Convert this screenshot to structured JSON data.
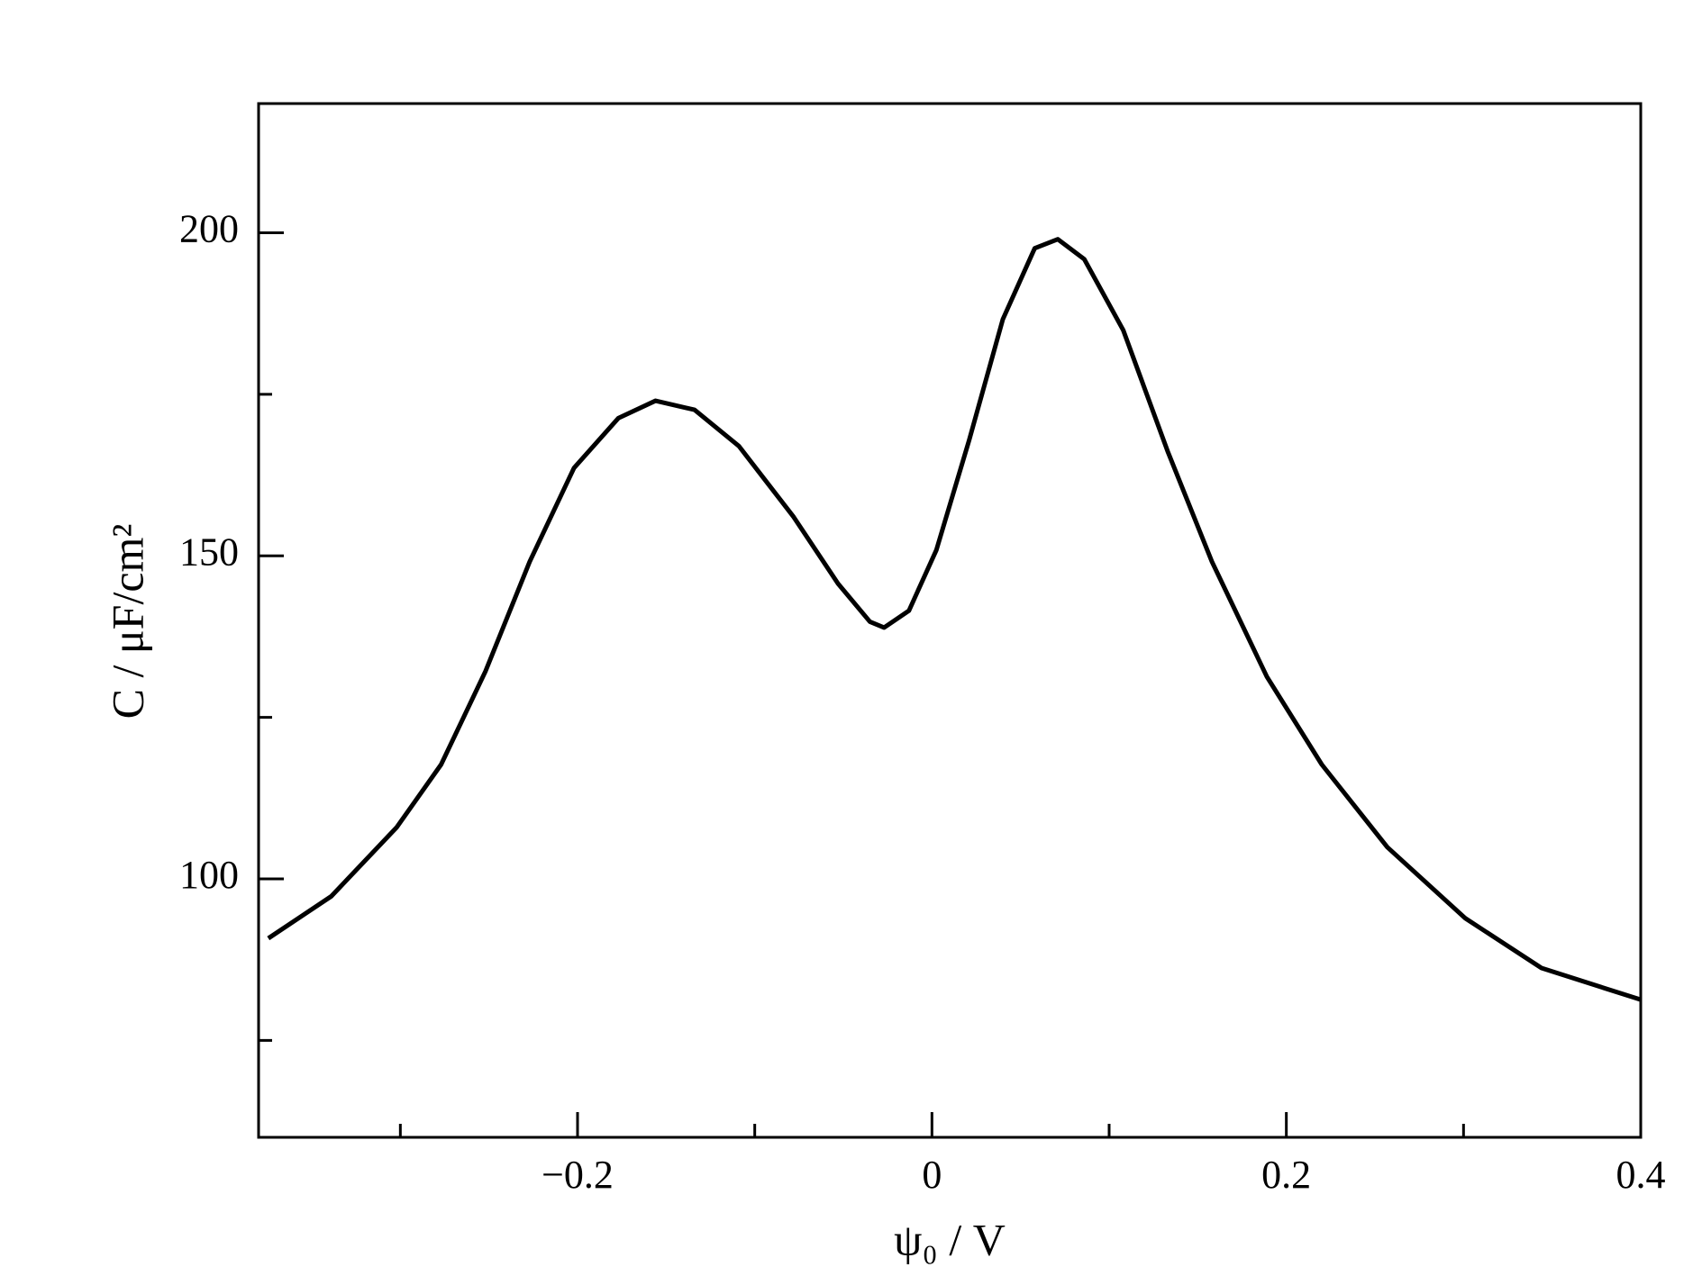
{
  "chart_data": {
    "type": "line",
    "xlabel": "ψ₀ / V",
    "ylabel": "C / μF/cm²",
    "series": [
      {
        "color": "#000000",
        "x": [
          -0.3745,
          -0.339,
          -0.302,
          -0.277,
          -0.252,
          -0.227,
          -0.202,
          -0.177,
          -0.156,
          -0.134,
          -0.109,
          -0.078,
          -0.053,
          -0.035,
          -0.027,
          -0.013,
          0.0025,
          0.021,
          0.04,
          0.058,
          0.071,
          0.086,
          0.108,
          0.133,
          0.158,
          0.189,
          0.22,
          0.257,
          0.301,
          0.344,
          0.4
        ],
        "values": [
          90.8,
          97.3,
          108.0,
          117.7,
          132.1,
          149.1,
          163.6,
          171.3,
          174.0,
          172.6,
          167.0,
          156.0,
          145.7,
          139.8,
          138.9,
          141.5,
          150.9,
          167.9,
          186.6,
          197.6,
          199.0,
          195.9,
          184.9,
          166.2,
          149.1,
          131.3,
          117.7,
          104.9,
          93.9,
          86.2,
          81.3
        ]
      }
    ],
    "xlim": [
      -0.38,
      0.4
    ],
    "ylim": [
      60,
      220
    ],
    "xticks": [
      {
        "value": -0.2,
        "label": "−0.2"
      },
      0,
      0.2,
      0.4
    ],
    "xminor_ticks": [
      -0.3,
      -0.1,
      0.1,
      0.3
    ],
    "yticks": [
      100,
      150,
      200
    ],
    "yminor_ticks": [
      75,
      125,
      175
    ],
    "grid": false
  }
}
